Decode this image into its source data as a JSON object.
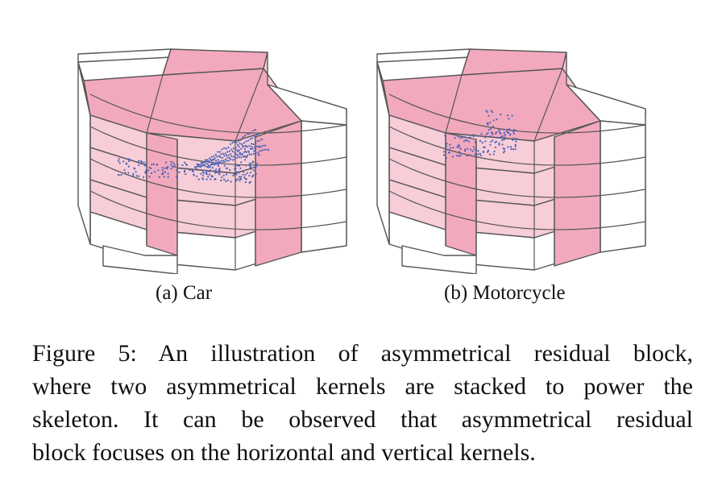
{
  "figure": {
    "subfigures": [
      {
        "id": "a",
        "caption": "(a) Car"
      },
      {
        "id": "b",
        "caption": "(b) Motorcycle"
      }
    ],
    "caption_lines": [
      "Figure 5:  An illustration of asymmetrical residual block,",
      "where two asymmetrical kernels are stacked to power the",
      "skeleton.  It can be observed that asymmetrical residual",
      "block focuses on the horizontal and vertical kernels."
    ],
    "colors": {
      "pink_strong": "#f2a9bd",
      "pink_light": "#f7cdd8",
      "point_blue": "#4a62b5",
      "line": "#555555"
    }
  }
}
